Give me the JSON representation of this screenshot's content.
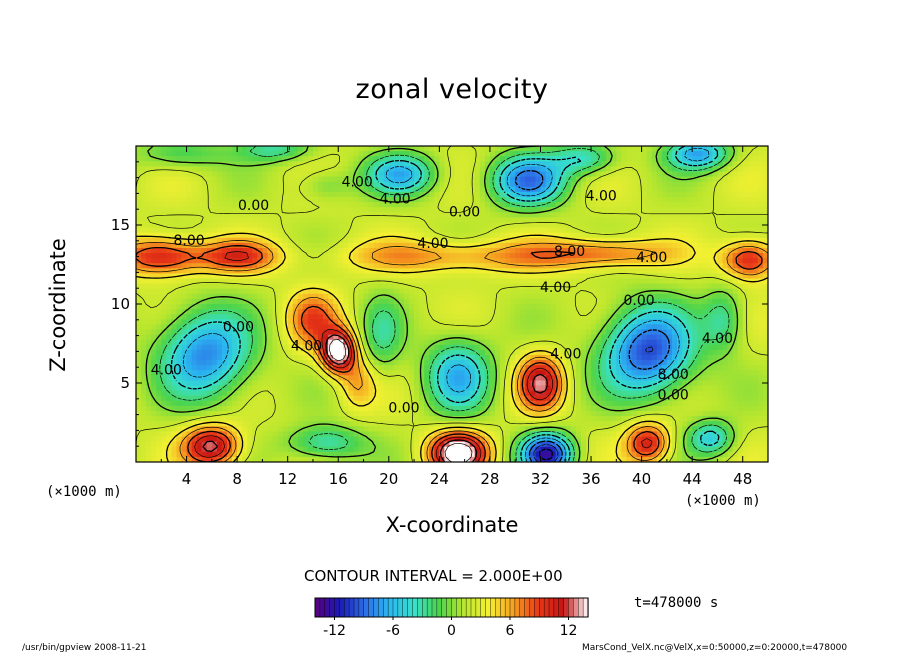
{
  "chart_data": {
    "type": "heatmap",
    "title": "zonal velocity",
    "xlabel": "X-coordinate",
    "ylabel": "Z-coordinate",
    "x_scale_note": "(×1000 m)",
    "y_scale_note": "(×1000 m)",
    "xlim": [
      0,
      50
    ],
    "ylim": [
      0,
      20
    ],
    "x_ticks": [
      4,
      8,
      12,
      16,
      20,
      24,
      28,
      32,
      36,
      40,
      44,
      48
    ],
    "y_ticks": [
      5,
      10,
      15
    ],
    "contour_interval": "CONTOUR INTERVAL = 2.000E+00",
    "time_label": "t=478000 s",
    "colorbar": {
      "min": -14,
      "max": 14,
      "ticks": [
        -12,
        -6,
        0,
        6,
        12
      ]
    },
    "contour_labels": [
      {
        "text": "4.00",
        "x": 17.5,
        "z": 17.7
      },
      {
        "text": "4.00",
        "x": 20.5,
        "z": 16.6
      },
      {
        "text": "4.00",
        "x": 36.8,
        "z": 16.8
      },
      {
        "text": "0.00",
        "x": 9.3,
        "z": 16.2
      },
      {
        "text": "0.00",
        "x": 26.0,
        "z": 15.8
      },
      {
        "text": "8.00",
        "x": 4.2,
        "z": 14.0
      },
      {
        "text": "4.00",
        "x": 23.5,
        "z": 13.8
      },
      {
        "text": "8.00",
        "x": 34.3,
        "z": 13.3
      },
      {
        "text": "4.00",
        "x": 40.8,
        "z": 12.9
      },
      {
        "text": "4.00",
        "x": 33.2,
        "z": 11.0
      },
      {
        "text": "0.00",
        "x": 39.8,
        "z": 10.2
      },
      {
        "text": "0.00",
        "x": 8.1,
        "z": 8.5
      },
      {
        "text": "4.00",
        "x": 13.5,
        "z": 7.3
      },
      {
        "text": "4.00",
        "x": 2.4,
        "z": 5.8
      },
      {
        "text": "4.00",
        "x": 34.0,
        "z": 6.8
      },
      {
        "text": "8.00",
        "x": 42.5,
        "z": 5.5
      },
      {
        "text": "4.00",
        "x": 46.0,
        "z": 7.8
      },
      {
        "text": "0.00",
        "x": 42.5,
        "z": 4.2
      },
      {
        "text": "0.00",
        "x": 21.2,
        "z": 3.4
      }
    ],
    "features": [
      {
        "x": 5.5,
        "z": 6.8,
        "value": -10,
        "sx": 3.6,
        "sz": 2.8
      },
      {
        "x": 25.5,
        "z": 5.5,
        "value": -8,
        "sx": 2.6,
        "sz": 2.4
      },
      {
        "x": 40.5,
        "z": 7.0,
        "value": -12,
        "sx": 3.6,
        "sz": 2.8
      },
      {
        "x": 19.5,
        "z": 8.0,
        "value": -4,
        "sx": 1.6,
        "sz": 2.5
      },
      {
        "x": 46.5,
        "z": 9.0,
        "value": -5,
        "sx": 1.6,
        "sz": 2.0
      },
      {
        "x": 16.0,
        "z": 7.0,
        "value": 14,
        "sx": 1.3,
        "sz": 1.3
      },
      {
        "x": 14.0,
        "z": 9.0,
        "value": 6,
        "sx": 2.0,
        "sz": 1.8
      },
      {
        "x": 17.5,
        "z": 5.0,
        "value": 4,
        "sx": 1.4,
        "sz": 1.6
      },
      {
        "x": 32.0,
        "z": 5.0,
        "value": 10,
        "sx": 1.7,
        "sz": 1.7
      },
      {
        "x": 2.0,
        "z": 13.0,
        "value": 9,
        "sx": 3.2,
        "sz": 1.2
      },
      {
        "x": 8.0,
        "z": 13.0,
        "value": 7,
        "sx": 3.2,
        "sz": 1.0
      },
      {
        "x": 25.0,
        "z": 13.0,
        "value": 5,
        "sx": 9.0,
        "sz": 1.0
      },
      {
        "x": 37.0,
        "z": 13.2,
        "value": 6,
        "sx": 5.0,
        "sz": 0.9
      },
      {
        "x": 48.5,
        "z": 12.8,
        "value": 9,
        "sx": 2.2,
        "sz": 1.2
      },
      {
        "x": 6.0,
        "z": 1.0,
        "value": 11,
        "sx": 2.2,
        "sz": 1.3
      },
      {
        "x": 25.5,
        "z": 0.6,
        "value": 14,
        "sx": 2.2,
        "sz": 1.3
      },
      {
        "x": 32.5,
        "z": 0.5,
        "value": -14,
        "sx": 2.0,
        "sz": 1.3
      },
      {
        "x": 40.5,
        "z": 1.2,
        "value": 9,
        "sx": 1.7,
        "sz": 1.3
      },
      {
        "x": 15.0,
        "z": 1.2,
        "value": -6,
        "sx": 3.0,
        "sz": 1.1
      },
      {
        "x": 45.5,
        "z": 1.5,
        "value": -7,
        "sx": 1.8,
        "sz": 1.1
      },
      {
        "x": 3.5,
        "z": 19.5,
        "value": -4,
        "sx": 3.5,
        "sz": 1.0
      },
      {
        "x": 11.0,
        "z": 19.8,
        "value": -5,
        "sx": 3.0,
        "sz": 0.8
      },
      {
        "x": 21.0,
        "z": 18.2,
        "value": -8,
        "sx": 2.8,
        "sz": 1.3
      },
      {
        "x": 31.0,
        "z": 17.8,
        "value": -10,
        "sx": 3.0,
        "sz": 1.6
      },
      {
        "x": 35.5,
        "z": 19.2,
        "value": -6,
        "sx": 2.5,
        "sz": 1.0
      },
      {
        "x": 44.5,
        "z": 19.5,
        "value": -9,
        "sx": 2.5,
        "sz": 1.0
      },
      {
        "x": 15.0,
        "z": 17.5,
        "value": -3,
        "sx": 2.0,
        "sz": 1.0
      }
    ],
    "background_value": 2.0,
    "colors": {
      "stops": [
        "#5a0080",
        "#1a1ab4",
        "#2e6de6",
        "#2ab8f0",
        "#38e0c8",
        "#4cd44c",
        "#b8e62e",
        "#f5f032",
        "#f5a020",
        "#e83818",
        "#c41414",
        "#ffffff"
      ]
    }
  },
  "footer_left": "/usr/bin/gpview   2008-11-21",
  "footer_right": "MarsCond_VelX.nc@VelX,x=0:50000,z=0:20000,t=478000"
}
